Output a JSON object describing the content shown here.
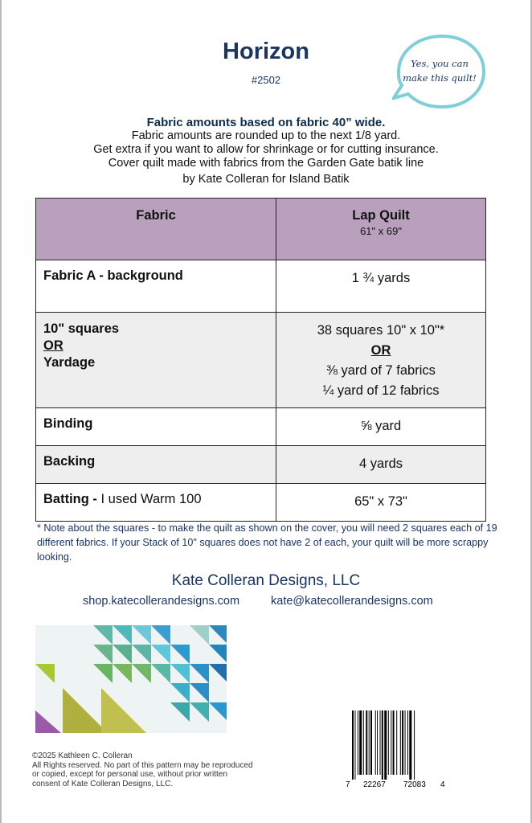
{
  "header": {
    "title": "Horizon",
    "pattern_number": "#2502",
    "bubble_text_line1": "Yes, you can",
    "bubble_text_line2": "make this quilt!"
  },
  "intro": {
    "bold_line": "Fabric amounts based on fabric 40” wide.",
    "lines": [
      "Fabric amounts are rounded up to the next 1/8 yard.",
      "Get extra if you want to allow for shrinkage or for cutting insurance.",
      "Cover quilt made with fabrics from the Garden Gate batik line",
      "by Kate Colleran for Island Batik"
    ]
  },
  "table": {
    "headers": {
      "fabric": "Fabric",
      "size": "Lap Quilt",
      "size_dims": "61\" x 69\""
    },
    "rows": [
      {
        "fabric": "Fabric A - background",
        "amount": [
          "1 ¾ yards"
        ]
      },
      {
        "fabric_lines": [
          "10\" squares",
          "OR",
          "Yardage"
        ],
        "amount": [
          "38 squares 10\" x 10\"*",
          "OR",
          "⅜ yard of 7 fabrics",
          "¼ yard of 12 fabrics"
        ]
      },
      {
        "fabric": "Binding",
        "amount": [
          "⅝ yard"
        ]
      },
      {
        "fabric": "Backing",
        "amount": [
          "4 yards"
        ]
      },
      {
        "fabric": "Batting - ",
        "fabric_note": "I used Warm 100",
        "amount": [
          "65\" x 73\""
        ]
      }
    ]
  },
  "note": "* Note about the squares - to make the quilt as shown on the cover, you will need 2 squares each of 19 different fabrics. If your Stack of 10\" squares does not have 2 of each, your quilt will be more scrappy looking.",
  "company": {
    "name": "Kate Colleran Designs, LLC",
    "shop": "shop.katecollerandesigns.com",
    "email": "kate@katecollerandesigns.com"
  },
  "copyright": {
    "line1": "©2025 Kathleen C. Colleran",
    "line2": "All Rights reserved. No part of this pattern may be reproduced",
    "line3": "or copied, except for personal use,  without prior written",
    "line4": "consent of Kate Colleran Designs, LLC."
  },
  "barcode": {
    "d1": "7",
    "d2": "22267",
    "d3": "72083",
    "d4": "4"
  },
  "colors": {
    "title": "#1b3563",
    "table_header": "#b9a0bd",
    "bubble": "#7fcfd6"
  }
}
